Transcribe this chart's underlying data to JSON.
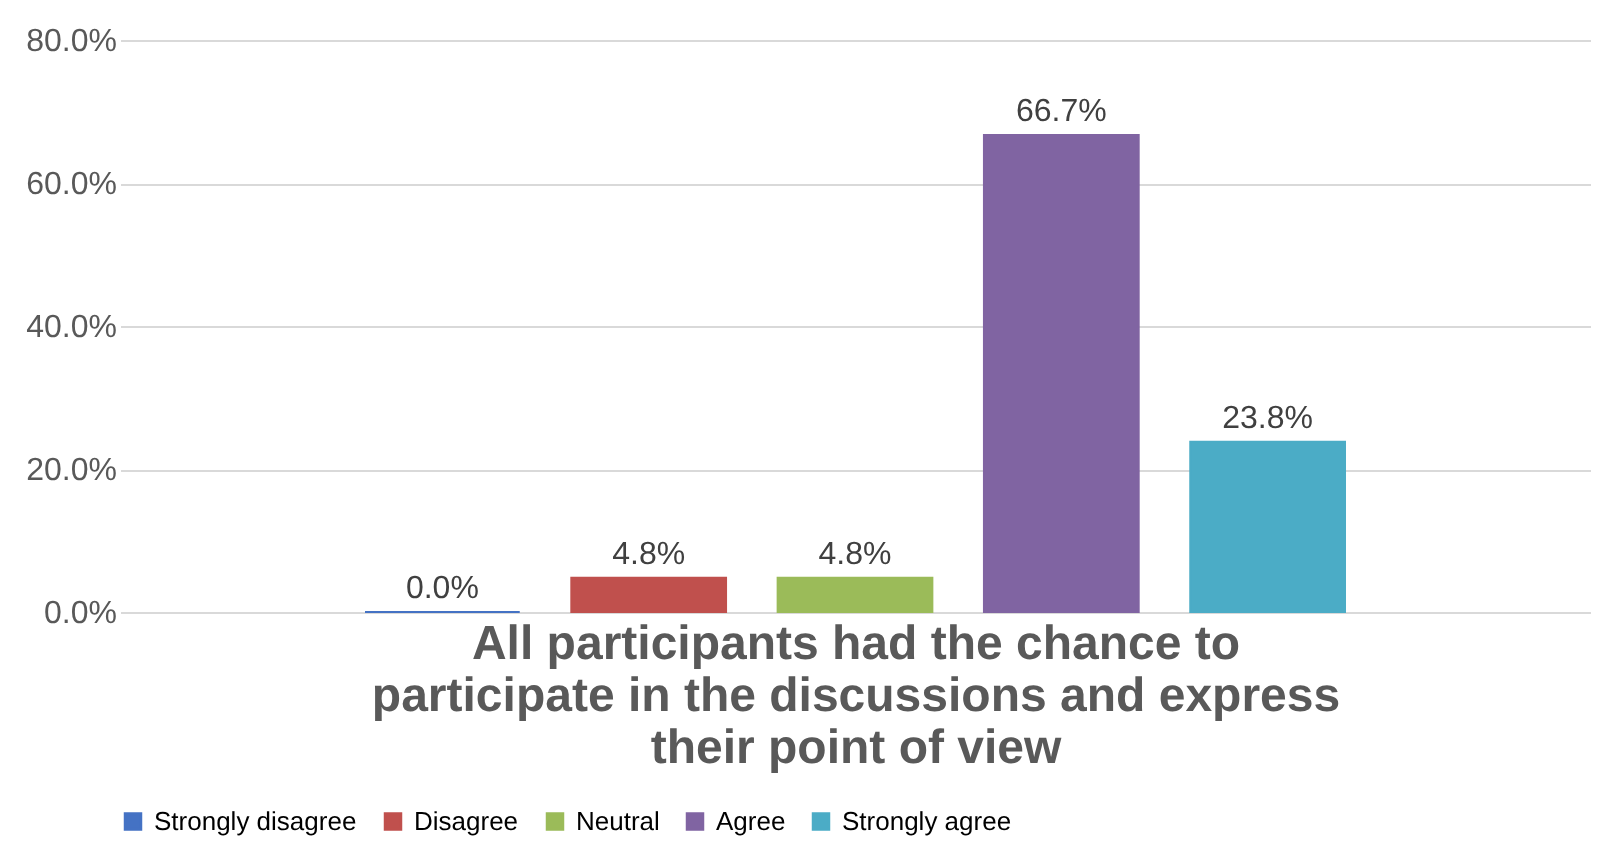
{
  "chart_data": {
    "type": "bar",
    "xlabel": "All participants had the chance to participate in the discussions and express their point of view",
    "categories": [
      null
    ],
    "series": [
      {
        "name": "Strongly disagree",
        "color": "#4472c4",
        "values": [
          0.0
        ],
        "value_labels": [
          "0.0%"
        ]
      },
      {
        "name": "Disagree",
        "color": "#c0504d",
        "values": [
          4.8
        ],
        "value_labels": [
          "4.8%"
        ]
      },
      {
        "name": "Neutral",
        "color": "#9bbb59",
        "values": [
          4.8
        ],
        "value_labels": [
          "4.8%"
        ]
      },
      {
        "name": "Agree",
        "color": "#8064a2",
        "values": [
          66.7
        ],
        "value_labels": [
          "66.7%"
        ]
      },
      {
        "name": "Strongly agree",
        "color": "#4bacc6",
        "values": [
          23.8
        ],
        "value_labels": [
          "23.8%"
        ]
      }
    ],
    "ylim": [
      0,
      80
    ],
    "yticks": [
      {
        "value": 0,
        "label": "0.0%"
      },
      {
        "value": 20,
        "label": "20.0%"
      },
      {
        "value": 40,
        "label": "40.0%"
      },
      {
        "value": 60,
        "label": "60.0%"
      },
      {
        "value": 80,
        "label": "80.0%"
      }
    ],
    "grid": "y",
    "legend": "bottom"
  }
}
